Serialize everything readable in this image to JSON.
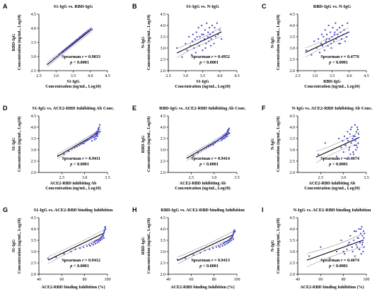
{
  "chart_data": [
    {
      "id": "A",
      "type": "scatter",
      "title": "S1-IgG vs. RBD-IgG",
      "xlabel": [
        "S1-IgG",
        "Concentration (ng/mL, Log10)"
      ],
      "ylabel": [
        "RBD-IgG",
        "Concentration (ng/mL, Log10)"
      ],
      "xlim": [
        2.5,
        4.5
      ],
      "ylim": [
        2.5,
        4.5
      ],
      "xticks": [
        "2.5",
        "3.0",
        "3.5",
        "4.0",
        "4.5"
      ],
      "yticks": [
        "2.5",
        "3.0",
        "3.5",
        "4.0",
        "4.5"
      ],
      "stat": [
        "Spearman ",
        "r",
        " = 0.9833"
      ],
      "pval": [
        "p",
        " < 0.0001"
      ],
      "fit": {
        "x": [
          2.75,
          4.05
        ],
        "y": [
          2.72,
          3.97
        ],
        "band": [
          0.04,
          0.08
        ]
      },
      "point_color": "#4d4dc7",
      "x": [
        2.75,
        2.85,
        2.95,
        3.02,
        3.08,
        3.12,
        3.15,
        3.18,
        3.21,
        3.24,
        3.27,
        3.3,
        3.32,
        3.35,
        3.38,
        3.4,
        3.42,
        3.45,
        3.47,
        3.5,
        3.52,
        3.55,
        3.57,
        3.6,
        3.62,
        3.65,
        3.68,
        3.7,
        3.72,
        3.75,
        3.78,
        3.8,
        3.83,
        3.85,
        3.88,
        3.92,
        3.95,
        4.0,
        4.05
      ],
      "y": [
        2.73,
        2.82,
        2.93,
        2.99,
        3.06,
        3.1,
        3.12,
        3.17,
        3.2,
        3.22,
        3.26,
        3.28,
        3.31,
        3.33,
        3.37,
        3.39,
        3.4,
        3.44,
        3.46,
        3.48,
        3.5,
        3.53,
        3.56,
        3.59,
        3.6,
        3.63,
        3.66,
        3.69,
        3.7,
        3.73,
        3.76,
        3.79,
        3.8,
        3.84,
        3.86,
        3.9,
        3.93,
        3.98,
        3.96
      ]
    },
    {
      "id": "B",
      "type": "scatter",
      "title": "S1-IgG vs. N-IgG",
      "xlabel": [
        "S1-IgG",
        "Concentration (ng/mL, Log10)"
      ],
      "ylabel": [
        "N-IgG",
        "Concentration (ng/mL, Log10)"
      ],
      "xlim": [
        2.5,
        4.5
      ],
      "ylim": [
        2.0,
        4.5
      ],
      "xticks": [
        "2.5",
        "3.0",
        "3.5",
        "4.0",
        "4.5"
      ],
      "yticks": [
        "2.0",
        "2.5",
        "3.0",
        "3.5",
        "4.0",
        "4.5"
      ],
      "stat": [
        "Spearman ",
        "r",
        " = 0.4952"
      ],
      "pval": [
        "p",
        " < 0.0001"
      ],
      "fit": {
        "x": [
          2.75,
          4.05
        ],
        "y": [
          2.78,
          3.72
        ],
        "band": [
          0.08,
          0.2
        ]
      },
      "point_color": "#4d4dc7",
      "x": [
        2.75,
        2.9,
        3.0,
        3.05,
        3.1,
        3.15,
        3.18,
        3.2,
        3.22,
        3.25,
        3.28,
        3.3,
        3.32,
        3.35,
        3.38,
        3.4,
        3.42,
        3.45,
        3.47,
        3.5,
        3.52,
        3.55,
        3.57,
        3.6,
        3.62,
        3.65,
        3.68,
        3.7,
        3.72,
        3.75,
        3.78,
        3.8,
        3.83,
        3.85,
        3.88,
        3.92,
        3.95,
        4.0,
        4.05,
        3.48,
        3.58,
        3.66,
        3.34,
        3.74
      ],
      "y": [
        3.0,
        2.6,
        3.2,
        2.9,
        3.5,
        3.1,
        2.7,
        3.3,
        3.6,
        3.0,
        3.4,
        2.8,
        3.7,
        3.2,
        3.9,
        3.1,
        3.5,
        3.3,
        4.0,
        2.9,
        3.6,
        3.4,
        3.8,
        3.2,
        4.1,
        3.5,
        3.3,
        3.9,
        3.6,
        3.4,
        4.0,
        3.7,
        3.2,
        3.9,
        3.5,
        4.1,
        3.6,
        3.8,
        3.4,
        3.6,
        3.0,
        3.7,
        3.5,
        3.1
      ]
    },
    {
      "id": "C",
      "type": "scatter",
      "title": "RBD-IgG vs. N-IgG",
      "xlabel": [
        "RBD-IgG",
        "Concentration (ng/mL, Log10)"
      ],
      "ylabel": [
        "N-IgG",
        "Concentration (ng/mL, Log10)"
      ],
      "xlim": [
        2.5,
        4.5
      ],
      "ylim": [
        2.0,
        4.5
      ],
      "xticks": [
        "2.5",
        "3.0",
        "3.5",
        "4.0",
        "4.5"
      ],
      "yticks": [
        "2.0",
        "2.5",
        "3.0",
        "3.5",
        "4.0",
        "4.5"
      ],
      "stat": [
        "Spearman ",
        "r",
        " = 0.4776"
      ],
      "pval": [
        "p",
        " < 0.0001"
      ],
      "fit": {
        "x": [
          2.72,
          3.98
        ],
        "y": [
          2.8,
          3.7
        ],
        "band": [
          0.08,
          0.2
        ]
      },
      "point_color": "#4d4dc7",
      "x": [
        2.75,
        2.9,
        2.98,
        3.05,
        3.1,
        3.14,
        3.18,
        3.2,
        3.22,
        3.25,
        3.28,
        3.3,
        3.32,
        3.35,
        3.38,
        3.4,
        3.42,
        3.45,
        3.47,
        3.5,
        3.52,
        3.55,
        3.57,
        3.6,
        3.62,
        3.65,
        3.68,
        3.7,
        3.72,
        3.75,
        3.78,
        3.8,
        3.83,
        3.85,
        3.88,
        3.92,
        3.95,
        3.98,
        3.48,
        3.58,
        3.66,
        3.34,
        3.74
      ],
      "y": [
        2.9,
        2.7,
        3.3,
        3.0,
        3.4,
        2.8,
        3.2,
        3.6,
        3.1,
        3.5,
        2.9,
        3.8,
        3.3,
        3.6,
        3.1,
        4.0,
        3.4,
        3.7,
        3.2,
        3.5,
        3.9,
        3.3,
        3.6,
        4.1,
        3.4,
        3.8,
        3.5,
        3.2,
        3.9,
        3.7,
        3.4,
        4.0,
        3.6,
        3.8,
        3.3,
        3.5,
        4.1,
        3.7,
        3.0,
        3.7,
        3.6,
        3.4,
        3.2
      ]
    },
    {
      "id": "D",
      "type": "scatter",
      "title": "S1-IgG vs. ACE2-RBD Inhibiting Ab Conc.",
      "xlabel": [
        "ACE2-RBD inhibiting Ab",
        "Concentration (ng/mL, Log10)"
      ],
      "ylabel": [
        "S1-IgG",
        "Concentration (ng/mL, Log10)"
      ],
      "xlim": [
        2.0,
        3.5
      ],
      "ylim": [
        2.0,
        4.5
      ],
      "xticks": [
        "2.5",
        "3.0",
        "3.5"
      ],
      "yticks": [
        "2.0",
        "2.5",
        "3.0",
        "3.5",
        "4.0",
        "4.5"
      ],
      "stat": [
        "Spearman ",
        "r",
        " = 0.9411"
      ],
      "pval": [
        "p",
        " < 0.0001"
      ],
      "fit": {
        "x": [
          2.4,
          3.35
        ],
        "y": [
          2.7,
          3.82
        ],
        "band": [
          0.05,
          0.1
        ]
      },
      "point_color": "#4d4dc7",
      "x": [
        2.42,
        2.55,
        2.65,
        2.72,
        2.78,
        2.83,
        2.88,
        2.92,
        2.95,
        2.98,
        3.0,
        3.02,
        3.05,
        3.07,
        3.09,
        3.1,
        3.12,
        3.14,
        3.15,
        3.17,
        3.18,
        3.2,
        3.21,
        3.22,
        3.24,
        3.25,
        3.26,
        3.27,
        3.28,
        3.29,
        3.3,
        3.31,
        3.32,
        3.33,
        3.3,
        3.28,
        3.25,
        3.22,
        3.19,
        3.16
      ],
      "y": [
        2.75,
        2.8,
        2.95,
        3.05,
        3.1,
        3.15,
        3.2,
        3.25,
        3.3,
        3.28,
        3.35,
        3.4,
        3.42,
        3.45,
        3.5,
        3.48,
        3.55,
        3.52,
        3.6,
        3.58,
        3.62,
        3.65,
        3.55,
        3.7,
        3.6,
        3.75,
        3.65,
        3.8,
        3.7,
        3.85,
        3.78,
        3.9,
        4.0,
        4.1,
        3.95,
        3.6,
        3.5,
        3.45,
        3.55,
        3.4
      ]
    },
    {
      "id": "E",
      "type": "scatter",
      "title": "RBD-IgG vs. ACE2-RBD Inhibiting Ab Conc.",
      "xlabel": [
        "ACE2-RBD inhibiting Ab",
        "Concentration (ng/mL, Log10)"
      ],
      "ylabel": [
        "RBD-IgG",
        "Concentration (ng/mL, Log10)"
      ],
      "xlim": [
        2.0,
        3.5
      ],
      "ylim": [
        2.0,
        4.5
      ],
      "xticks": [
        "2.5",
        "3.0",
        "3.5"
      ],
      "yticks": [
        "2.0",
        "2.5",
        "3.0",
        "3.5",
        "4.0",
        "4.5"
      ],
      "stat": [
        "Spearman ",
        "r",
        " = 0.9414"
      ],
      "pval": [
        "p",
        " < 0.0001"
      ],
      "fit": {
        "x": [
          2.4,
          3.35
        ],
        "y": [
          2.62,
          3.75
        ],
        "band": [
          0.05,
          0.1
        ]
      },
      "point_color": "#4d4dc7",
      "x": [
        2.42,
        2.55,
        2.65,
        2.72,
        2.78,
        2.83,
        2.88,
        2.92,
        2.95,
        2.98,
        3.0,
        3.02,
        3.05,
        3.07,
        3.09,
        3.1,
        3.12,
        3.14,
        3.15,
        3.17,
        3.18,
        3.2,
        3.21,
        3.22,
        3.24,
        3.25,
        3.26,
        3.27,
        3.28,
        3.29,
        3.3,
        3.31,
        3.32,
        3.33,
        3.3,
        3.28,
        3.25,
        3.22,
        3.19,
        3.16
      ],
      "y": [
        2.65,
        2.72,
        2.88,
        2.98,
        3.05,
        3.1,
        3.15,
        3.2,
        3.25,
        3.22,
        3.3,
        3.32,
        3.38,
        3.4,
        3.42,
        3.45,
        3.48,
        3.5,
        3.52,
        3.55,
        3.5,
        3.6,
        3.58,
        3.65,
        3.62,
        3.7,
        3.66,
        3.72,
        3.75,
        3.8,
        3.85,
        3.78,
        3.9,
        3.95,
        3.88,
        3.6,
        3.55,
        3.5,
        3.48,
        3.42
      ]
    },
    {
      "id": "F",
      "type": "scatter",
      "title": "N-IgG vs. ACE2-RBD Inhibiting Ab Conc.",
      "xlabel": [
        "ACE2-RBD inhibiting Ab",
        "Concentration (ng/mL, Log10)"
      ],
      "ylabel": [
        "N-IgG",
        "Concentration (ng/mL, Log10)"
      ],
      "xlim": [
        2.0,
        3.5
      ],
      "ylim": [
        2.0,
        4.5
      ],
      "xticks": [
        "2.5",
        "3.0",
        "3.5"
      ],
      "yticks": [
        "2.0",
        "2.5",
        "3.0",
        "3.5",
        "4.0",
        "4.5"
      ],
      "stat": [
        "Spearman ",
        "r",
        " = 0.4674"
      ],
      "pval": [
        "p",
        " < 0.0001"
      ],
      "fit": {
        "x": [
          2.4,
          3.35
        ],
        "y": [
          2.68,
          3.55
        ],
        "band": [
          0.1,
          0.25
        ]
      },
      "point_color": "#4d4dc7",
      "x": [
        2.45,
        2.6,
        2.75,
        2.85,
        2.9,
        2.95,
        3.0,
        3.02,
        3.05,
        3.07,
        3.09,
        3.1,
        3.12,
        3.14,
        3.15,
        3.17,
        3.18,
        3.2,
        3.21,
        3.22,
        3.24,
        3.25,
        3.26,
        3.27,
        3.28,
        3.29,
        3.3,
        3.31,
        3.32,
        3.33,
        3.3,
        3.28,
        3.25,
        3.22,
        3.19,
        3.16,
        3.13,
        3.08,
        3.04,
        2.98
      ],
      "y": [
        2.8,
        3.3,
        3.0,
        2.7,
        3.5,
        3.1,
        2.9,
        3.6,
        3.2,
        2.6,
        3.8,
        3.4,
        3.0,
        3.7,
        2.8,
        3.3,
        4.0,
        3.5,
        2.9,
        3.6,
        3.2,
        4.1,
        3.4,
        3.0,
        3.8,
        3.5,
        3.1,
        3.9,
        3.3,
        3.7,
        4.0,
        3.2,
        3.6,
        2.8,
        3.4,
        3.9,
        3.1,
        3.5,
        3.2,
        3.4
      ]
    },
    {
      "id": "G",
      "type": "scatter",
      "title": "S1-IgG vs. ACE2-RBD binding Inhibition",
      "xlabel": [
        "ACE2-RBD binding Inhibition (%)"
      ],
      "ylabel": [
        "S1-IgG",
        "Concentration (ng/mL, Log10)"
      ],
      "xlim": [
        40,
        100
      ],
      "ylim": [
        2.0,
        4.5
      ],
      "xticks": [
        "40",
        "60",
        "80",
        "100"
      ],
      "yticks": [
        "2.0",
        "2.5",
        "3.0",
        "3.5",
        "4.0",
        "4.5"
      ],
      "stat": [
        "Spearman ",
        "r",
        " = 0.9412"
      ],
      "pval": [
        "p",
        " < 0.0001"
      ],
      "fit": {
        "x": [
          48,
          97
        ],
        "y": [
          2.62,
          3.82
        ],
        "band": [
          0.06,
          0.15
        ]
      },
      "point_color": "#4d4dc7",
      "x": [
        48,
        55,
        62,
        68,
        72,
        76,
        79,
        82,
        84,
        86,
        88,
        89,
        90,
        91,
        92,
        93,
        93.5,
        94,
        94.5,
        95,
        95.5,
        96,
        96.3,
        96.6,
        97,
        97.2,
        97.5,
        97.8,
        98,
        98.3,
        96.8,
        95.2,
        93.8,
        92.5,
        91.2,
        89.5,
        87.5,
        85
      ],
      "y": [
        2.7,
        2.75,
        2.9,
        3.0,
        3.1,
        3.15,
        3.2,
        3.25,
        3.3,
        3.35,
        3.4,
        3.45,
        3.48,
        3.5,
        3.52,
        3.55,
        3.58,
        3.6,
        3.62,
        3.65,
        3.68,
        3.7,
        3.75,
        3.8,
        3.85,
        3.9,
        3.95,
        4.05,
        4.1,
        4.0,
        3.6,
        3.55,
        3.5,
        3.45,
        3.4,
        3.35,
        3.3,
        3.25
      ]
    },
    {
      "id": "H",
      "type": "scatter",
      "title": "RBD-IgG vs. ACE2-RBD binding Inhibition",
      "xlabel": [
        "ACE2-RBD binding Inhibition (%)"
      ],
      "ylabel": [
        "RBD-IgG",
        "Concentration (ng/mL, Log10)"
      ],
      "xlim": [
        40,
        100
      ],
      "ylim": [
        2.0,
        4.5
      ],
      "xticks": [
        "40",
        "60",
        "80",
        "100"
      ],
      "yticks": [
        "2.0",
        "2.5",
        "3.0",
        "3.5",
        "4.0",
        "4.5"
      ],
      "stat": [
        "Spearman ",
        "r",
        " = 0.9413"
      ],
      "pval": [
        "p",
        " < 0.0001"
      ],
      "fit": {
        "x": [
          48,
          97
        ],
        "y": [
          2.6,
          3.75
        ],
        "band": [
          0.06,
          0.15
        ]
      },
      "point_color": "#4d4dc7",
      "x": [
        48,
        55,
        62,
        68,
        72,
        76,
        79,
        82,
        84,
        86,
        88,
        89,
        90,
        91,
        92,
        93,
        93.5,
        94,
        94.5,
        95,
        95.5,
        96,
        96.3,
        96.6,
        97,
        97.2,
        97.5,
        97.8,
        98,
        98.3,
        96.8,
        95.2,
        93.8,
        92.5,
        91.2,
        89.5,
        87.5,
        85
      ],
      "y": [
        2.65,
        2.7,
        2.85,
        2.95,
        3.05,
        3.1,
        3.15,
        3.2,
        3.25,
        3.3,
        3.35,
        3.4,
        3.42,
        3.45,
        3.48,
        3.5,
        3.52,
        3.55,
        3.58,
        3.6,
        3.62,
        3.65,
        3.7,
        3.75,
        3.8,
        3.85,
        3.9,
        3.95,
        3.92,
        3.88,
        3.55,
        3.5,
        3.45,
        3.4,
        3.35,
        3.3,
        3.25,
        3.2
      ]
    },
    {
      "id": "I",
      "type": "scatter",
      "title": "N-IgG vs. ACE2-RBD binding Inhibition",
      "xlabel": [
        "ACE2-RBD binding Inhibition (%)"
      ],
      "ylabel": [
        "N-IgG",
        "Concentration (ng/mL, Log10)"
      ],
      "xlim": [
        40,
        100
      ],
      "ylim": [
        2.0,
        4.5
      ],
      "xticks": [
        "40",
        "60",
        "80",
        "100"
      ],
      "yticks": [
        "2.0",
        "2.5",
        "3.0",
        "3.5",
        "4.0",
        "4.5"
      ],
      "stat": [
        "Spearman ",
        "r",
        " = 0.4674"
      ],
      "pval": [
        "p",
        " < 0.0001"
      ],
      "fit": {
        "x": [
          48,
          97
        ],
        "y": [
          2.62,
          3.5
        ],
        "band": [
          0.12,
          0.3
        ]
      },
      "point_color": "#4d4dc7",
      "x": [
        50,
        60,
        68,
        74,
        78,
        81,
        84,
        86,
        88,
        89,
        90,
        91,
        92,
        93,
        93.5,
        94,
        94.5,
        95,
        95.5,
        96,
        96.3,
        96.6,
        97,
        97.2,
        97.5,
        97.8,
        98,
        98.3,
        96.8,
        95.2,
        93.8,
        92.5,
        91.2,
        89.5,
        87.5,
        85,
        83,
        80
      ],
      "y": [
        2.8,
        3.2,
        2.7,
        3.0,
        3.5,
        2.9,
        3.3,
        3.7,
        3.0,
        3.5,
        2.8,
        3.9,
        3.2,
        3.6,
        4.0,
        3.1,
        3.4,
        3.8,
        2.9,
        4.1,
        3.3,
        3.7,
        3.5,
        3.0,
        3.9,
        3.6,
        3.2,
        3.8,
        3.4,
        4.0,
        3.1,
        3.6,
        3.3,
        3.9,
        3.2,
        3.4,
        3.1,
        3.0
      ]
    }
  ]
}
